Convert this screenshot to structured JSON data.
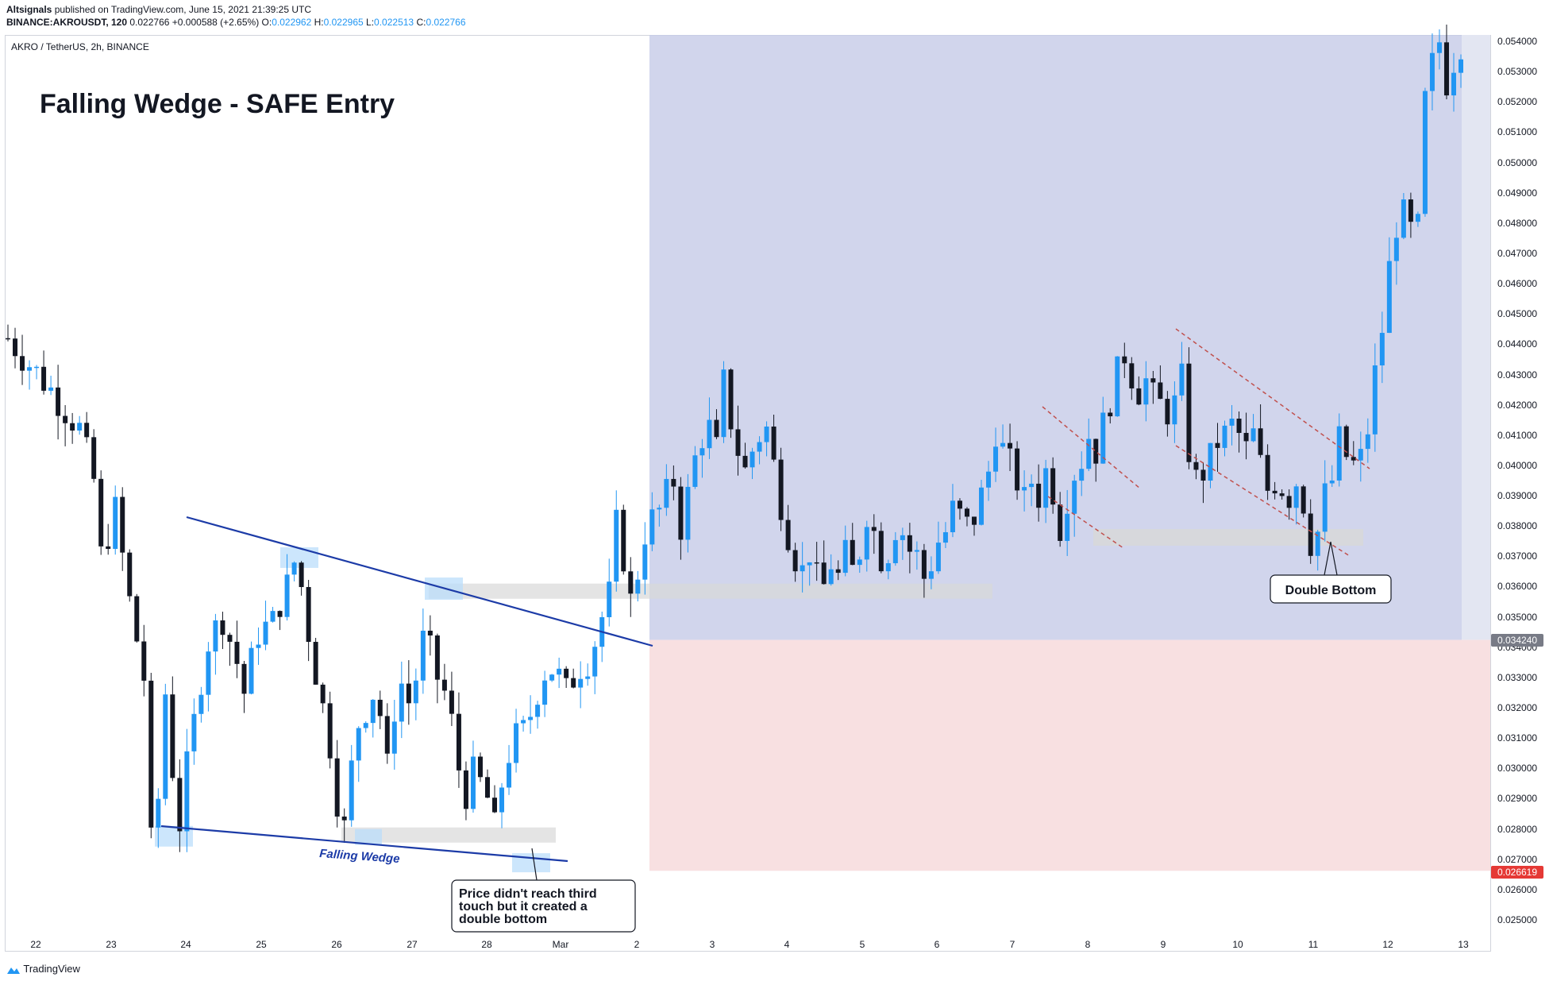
{
  "header": {
    "publisher": "Altsignals",
    "published_text": " published on TradingView.com, June 15, 2021 21:39:25 UTC",
    "symbol_line": "BINANCE:AKROUSDT, 120",
    "last": "0.022766",
    "change": "+0.000588 (+2.65%)",
    "o_label": "O:",
    "o": "0.022962",
    "h_label": "H:",
    "h": "0.022965",
    "l_label": "L:",
    "l": "0.022513",
    "c_label": "C:",
    "c": "0.022766"
  },
  "chart_title_line": "AKRO / TetherUS, 2h, BINANCE",
  "annotations": {
    "headline": "Falling Wedge - SAFE Entry",
    "wedge_label": "Falling Wedge",
    "note_lines": [
      "Price didn't reach third",
      "touch but it created a",
      "double bottom"
    ],
    "double_bottom": "Double Bottom"
  },
  "price_tags": {
    "entry": "0.034240",
    "stop": "0.026619"
  },
  "footer": {
    "brand": "TradingView"
  },
  "colors": {
    "up": "#2196f3",
    "down": "#131722",
    "target_zone": "#c5cbe7",
    "stop_zone": "#f8e0e1",
    "wedge_line": "#1c3ba7",
    "channel_line": "#c0504d",
    "zone_gray": "#d8d8d8",
    "entry_tag": "#787b86",
    "stop_tag": "#e53935"
  },
  "chart_data": {
    "type": "candlestick",
    "title": "AKRO / TetherUS, 2h, BINANCE",
    "ylim": [
      0.0245,
      0.0545
    ],
    "y_ticks": [
      "0.025000",
      "0.026000",
      "0.027000",
      "0.028000",
      "0.029000",
      "0.030000",
      "0.031000",
      "0.032000",
      "0.033000",
      "0.034000",
      "0.035000",
      "0.036000",
      "0.037000",
      "0.038000",
      "0.039000",
      "0.040000",
      "0.041000",
      "0.042000",
      "0.043000",
      "0.044000",
      "0.045000",
      "0.046000",
      "0.047000",
      "0.048000",
      "0.049000",
      "0.050000",
      "0.051000",
      "0.052000",
      "0.053000",
      "0.054000"
    ],
    "x_ticks": [
      "22",
      "23",
      "24",
      "25",
      "26",
      "27",
      "28",
      "Mar",
      "2",
      "3",
      "4",
      "5",
      "6",
      "7",
      "8",
      "9",
      "10",
      "11",
      "12",
      "13"
    ],
    "price_path": [
      [
        0,
        0.0442
      ],
      [
        6,
        0.0425
      ],
      [
        10,
        0.0412
      ],
      [
        12,
        0.0395
      ],
      [
        13,
        0.037
      ],
      [
        15,
        0.0385
      ],
      [
        17,
        0.0355
      ],
      [
        19,
        0.033
      ],
      [
        20,
        0.0275
      ],
      [
        21,
        0.029
      ],
      [
        22,
        0.0325
      ],
      [
        23,
        0.03
      ],
      [
        24,
        0.0282
      ],
      [
        25,
        0.03
      ],
      [
        27,
        0.033
      ],
      [
        28,
        0.0342
      ],
      [
        30,
        0.035
      ],
      [
        32,
        0.0335
      ],
      [
        33,
        0.0325
      ],
      [
        35,
        0.0345
      ],
      [
        37,
        0.0348
      ],
      [
        38,
        0.0355
      ],
      [
        39,
        0.036
      ],
      [
        40,
        0.0368
      ],
      [
        41,
        0.036
      ],
      [
        42,
        0.0345
      ],
      [
        43,
        0.0332
      ],
      [
        44,
        0.032
      ],
      [
        45,
        0.0308
      ],
      [
        46,
        0.029
      ],
      [
        47,
        0.028
      ],
      [
        48,
        0.03
      ],
      [
        49,
        0.0315
      ],
      [
        51,
        0.0325
      ],
      [
        52,
        0.0318
      ],
      [
        53,
        0.03
      ],
      [
        54,
        0.032
      ],
      [
        55,
        0.0328
      ],
      [
        56,
        0.0322
      ],
      [
        57,
        0.033
      ],
      [
        58,
        0.0342
      ],
      [
        59,
        0.0338
      ],
      [
        60,
        0.033
      ],
      [
        61,
        0.0325
      ],
      [
        62,
        0.0315
      ],
      [
        63,
        0.03
      ],
      [
        64,
        0.0292
      ],
      [
        65,
        0.0298
      ],
      [
        66,
        0.0295
      ],
      [
        67,
        0.029
      ],
      [
        68,
        0.028
      ],
      [
        69,
        0.0295
      ],
      [
        70,
        0.0305
      ],
      [
        71,
        0.031
      ],
      [
        72,
        0.0312
      ],
      [
        73,
        0.0318
      ],
      [
        74,
        0.0326
      ],
      [
        75,
        0.0332
      ],
      [
        76,
        0.0333
      ],
      [
        77,
        0.033
      ],
      [
        78,
        0.0325
      ],
      [
        79,
        0.033
      ],
      [
        80,
        0.0334
      ],
      [
        81,
        0.0336
      ],
      [
        82,
        0.0342
      ],
      [
        83,
        0.035
      ],
      [
        84,
        0.0357
      ],
      [
        85,
        0.038
      ],
      [
        86,
        0.037
      ],
      [
        87,
        0.0355
      ],
      [
        88,
        0.0365
      ],
      [
        89,
        0.0378
      ],
      [
        90,
        0.0382
      ],
      [
        91,
        0.0385
      ],
      [
        92,
        0.039
      ],
      [
        93,
        0.0395
      ],
      [
        94,
        0.038
      ],
      [
        95,
        0.039
      ],
      [
        96,
        0.0402
      ],
      [
        97,
        0.041
      ],
      [
        98,
        0.0412
      ],
      [
        99,
        0.0405
      ],
      [
        100,
        0.0427
      ],
      [
        101,
        0.0415
      ],
      [
        102,
        0.0405
      ],
      [
        103,
        0.0398
      ],
      [
        104,
        0.0405
      ],
      [
        105,
        0.041
      ],
      [
        106,
        0.0412
      ],
      [
        107,
        0.04
      ],
      [
        108,
        0.0388
      ],
      [
        109,
        0.0378
      ],
      [
        110,
        0.037
      ],
      [
        111,
        0.0365
      ],
      [
        112,
        0.0372
      ],
      [
        113,
        0.0362
      ],
      [
        114,
        0.036
      ],
      [
        115,
        0.0368
      ],
      [
        116,
        0.0363
      ],
      [
        117,
        0.037
      ],
      [
        118,
        0.0365
      ],
      [
        119,
        0.0372
      ],
      [
        120,
        0.0385
      ],
      [
        121,
        0.0378
      ],
      [
        122,
        0.037
      ],
      [
        123,
        0.0372
      ],
      [
        124,
        0.038
      ],
      [
        125,
        0.0378
      ],
      [
        126,
        0.0372
      ],
      [
        127,
        0.037
      ],
      [
        128,
        0.0363
      ],
      [
        129,
        0.0368
      ],
      [
        130,
        0.0375
      ],
      [
        131,
        0.0378
      ],
      [
        132,
        0.0385
      ],
      [
        133,
        0.0383
      ],
      [
        134,
        0.038
      ],
      [
        135,
        0.0383
      ],
      [
        136,
        0.039
      ],
      [
        137,
        0.0398
      ],
      [
        138,
        0.0412
      ],
      [
        139,
        0.0405
      ],
      [
        140,
        0.04
      ],
      [
        141,
        0.0395
      ],
      [
        142,
        0.0388
      ],
      [
        143,
        0.0395
      ],
      [
        144,
        0.039
      ],
      [
        145,
        0.0398
      ],
      [
        146,
        0.0392
      ],
      [
        147,
        0.038
      ],
      [
        148,
        0.039
      ],
      [
        149,
        0.0398
      ],
      [
        150,
        0.0402
      ],
      [
        151,
        0.041
      ],
      [
        152,
        0.0405
      ],
      [
        153,
        0.0413
      ],
      [
        154,
        0.0422
      ],
      [
        155,
        0.043
      ],
      [
        156,
        0.0437
      ],
      [
        157,
        0.043
      ],
      [
        158,
        0.0425
      ],
      [
        159,
        0.0428
      ],
      [
        160,
        0.0422
      ],
      [
        161,
        0.042
      ],
      [
        162,
        0.0418
      ],
      [
        163,
        0.042
      ],
      [
        164,
        0.0428
      ],
      [
        165,
        0.0405
      ],
      [
        166,
        0.0395
      ],
      [
        167,
        0.0398
      ],
      [
        168,
        0.0402
      ],
      [
        169,
        0.0408
      ],
      [
        170,
        0.041
      ],
      [
        171,
        0.0413
      ],
      [
        172,
        0.041
      ],
      [
        173,
        0.0405
      ],
      [
        174,
        0.041
      ],
      [
        175,
        0.04
      ],
      [
        176,
        0.0392
      ],
      [
        177,
        0.0395
      ],
      [
        178,
        0.0393
      ],
      [
        179,
        0.039
      ],
      [
        180,
        0.0395
      ],
      [
        181,
        0.0388
      ],
      [
        182,
        0.0375
      ],
      [
        183,
        0.0378
      ],
      [
        184,
        0.039
      ],
      [
        185,
        0.0395
      ],
      [
        186,
        0.0408
      ],
      [
        187,
        0.0403
      ],
      [
        188,
        0.04
      ],
      [
        189,
        0.0402
      ],
      [
        190,
        0.0412
      ],
      [
        191,
        0.043
      ],
      [
        192,
        0.0445
      ],
      [
        193,
        0.0465
      ],
      [
        194,
        0.048
      ],
      [
        195,
        0.0482
      ],
      [
        196,
        0.0477
      ],
      [
        197,
        0.0478
      ],
      [
        198,
        0.052
      ],
      [
        199,
        0.0532
      ],
      [
        200,
        0.054
      ],
      [
        201,
        0.0527
      ],
      [
        202,
        0.0534
      ],
      [
        203,
        0.054
      ]
    ]
  }
}
